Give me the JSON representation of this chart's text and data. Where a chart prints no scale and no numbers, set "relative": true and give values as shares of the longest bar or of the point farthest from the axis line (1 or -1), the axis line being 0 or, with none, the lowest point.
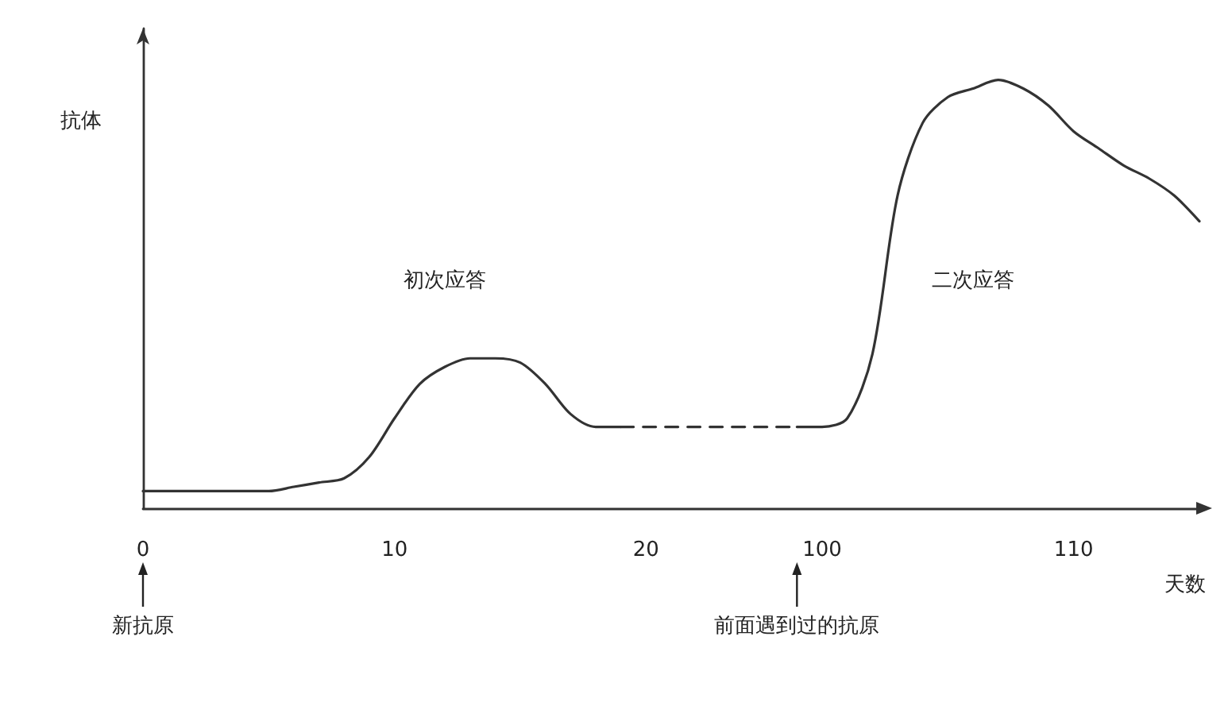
{
  "chart_data": {
    "type": "line",
    "relative": true,
    "xlabel": "天数",
    "ylabel": "抗体",
    "categories": [
      "0",
      null,
      null,
      null,
      null,
      null,
      null,
      null,
      null,
      null,
      "10",
      null,
      null,
      null,
      null,
      null,
      null,
      null,
      null,
      null,
      "20",
      null,
      null,
      null,
      null,
      null,
      null,
      "100",
      null,
      null,
      null,
      null,
      null,
      null,
      null,
      null,
      null,
      "110",
      null,
      null,
      null,
      null,
      null
    ],
    "series": [
      {
        "color": "#333333",
        "line_style": "solid",
        "values": [
          0.04,
          0.04,
          0.04,
          0.04,
          0.04,
          0.04,
          0.05,
          0.06,
          0.07,
          0.12,
          0.21,
          0.29,
          0.33,
          0.35,
          0.35,
          0.34,
          0.29,
          0.22,
          0.19,
          0.19,
          null,
          null,
          null,
          null,
          null,
          null,
          null,
          null,
          null,
          null,
          null,
          null,
          null,
          null,
          null,
          null,
          null,
          null,
          null,
          null,
          null,
          null,
          null
        ]
      },
      {
        "color": "#333333",
        "line_style": "dashed",
        "values": [
          null,
          null,
          null,
          null,
          null,
          null,
          null,
          null,
          null,
          null,
          null,
          null,
          null,
          null,
          null,
          null,
          null,
          null,
          null,
          0.19,
          0.19,
          0.19,
          0.19,
          0.19,
          0.19,
          0.19,
          0.19,
          null,
          null,
          null,
          null,
          null,
          null,
          null,
          null,
          null,
          null,
          null,
          null,
          null,
          null,
          null,
          null
        ]
      },
      {
        "color": "#333333",
        "line_style": "solid",
        "values": [
          null,
          null,
          null,
          null,
          null,
          null,
          null,
          null,
          null,
          null,
          null,
          null,
          null,
          null,
          null,
          null,
          null,
          null,
          null,
          null,
          null,
          null,
          null,
          null,
          null,
          null,
          0.19,
          0.19,
          0.21,
          0.36,
          0.73,
          0.9,
          0.96,
          0.98,
          1.0,
          0.98,
          0.94,
          0.88,
          0.84,
          0.8,
          0.77,
          0.73,
          0.67
        ]
      }
    ],
    "annotations": [
      "初次应答",
      "二次应答",
      "新抗原",
      "前面遇到过的抗原"
    ],
    "marker": "none",
    "grid": false
  }
}
